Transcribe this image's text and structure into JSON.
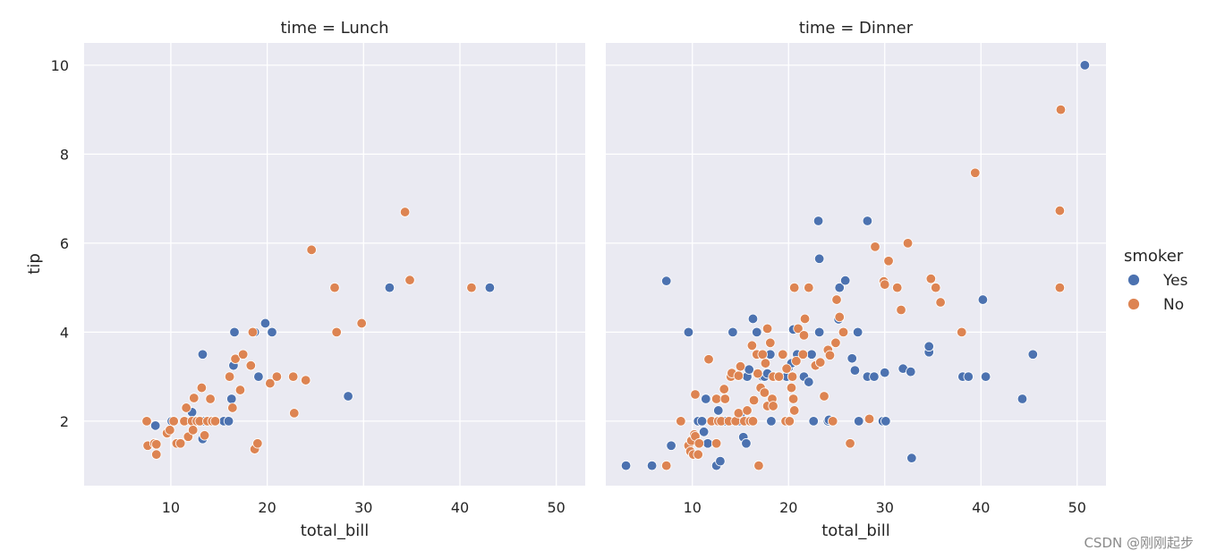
{
  "watermark": "CSDN @刚刚起步",
  "chart_data": {
    "type": "scatter",
    "x_label": "total_bill",
    "y_label": "tip",
    "xlim": [
      1,
      53
    ],
    "ylim": [
      0.55,
      10.5
    ],
    "x_ticks": [
      10,
      20,
      30,
      40,
      50
    ],
    "y_ticks": [
      2,
      4,
      6,
      8,
      10
    ],
    "grid": true,
    "legend": {
      "title": "smoker",
      "placement": "right",
      "entries": [
        {
          "label": "Yes",
          "color": "#4c72b0"
        },
        {
          "label": "No",
          "color": "#dd8452"
        }
      ]
    },
    "facets": [
      {
        "title": "time = Lunch",
        "series": [
          {
            "name": "Yes",
            "color": "#4c72b0",
            "points": [
              [
                8.4,
                1.9
              ],
              [
                10.1,
                2.0
              ],
              [
                12.2,
                2.2
              ],
              [
                12.7,
                2.0
              ],
              [
                13.3,
                3.5
              ],
              [
                13.3,
                1.6
              ],
              [
                13.4,
                2.0
              ],
              [
                13.8,
                2.0
              ],
              [
                15.5,
                2.0
              ],
              [
                16.0,
                2.0
              ],
              [
                16.3,
                2.5
              ],
              [
                16.5,
                3.25
              ],
              [
                16.6,
                4.0
              ],
              [
                18.7,
                4.0
              ],
              [
                19.1,
                3.0
              ],
              [
                19.8,
                4.2
              ],
              [
                20.5,
                4.0
              ],
              [
                28.4,
                2.56
              ],
              [
                32.7,
                5.0
              ],
              [
                43.1,
                5.0
              ]
            ]
          },
          {
            "name": "No",
            "color": "#dd8452",
            "points": [
              [
                7.5,
                2.0
              ],
              [
                7.6,
                1.45
              ],
              [
                8.3,
                1.5
              ],
              [
                8.5,
                1.25
              ],
              [
                8.5,
                1.48
              ],
              [
                9.6,
                1.73
              ],
              [
                9.9,
                1.8
              ],
              [
                10.3,
                2.0
              ],
              [
                10.6,
                1.5
              ],
              [
                11.0,
                1.5
              ],
              [
                11.4,
                2.0
              ],
              [
                11.6,
                2.3
              ],
              [
                11.8,
                1.65
              ],
              [
                12.2,
                2.0
              ],
              [
                12.3,
                1.8
              ],
              [
                12.4,
                2.52
              ],
              [
                12.7,
                2.0
              ],
              [
                13.0,
                2.0
              ],
              [
                13.2,
                2.75
              ],
              [
                13.5,
                1.68
              ],
              [
                13.8,
                2.0
              ],
              [
                14.1,
                2.5
              ],
              [
                14.3,
                2.0
              ],
              [
                14.6,
                2.0
              ],
              [
                16.1,
                3.0
              ],
              [
                16.4,
                2.3
              ],
              [
                16.7,
                3.4
              ],
              [
                17.2,
                2.7
              ],
              [
                17.5,
                3.5
              ],
              [
                18.3,
                3.25
              ],
              [
                18.5,
                4.0
              ],
              [
                18.7,
                1.37
              ],
              [
                19.0,
                1.5
              ],
              [
                20.3,
                2.85
              ],
              [
                21.0,
                3.0
              ],
              [
                22.7,
                3.0
              ],
              [
                22.8,
                2.18
              ],
              [
                24.0,
                2.92
              ],
              [
                24.6,
                5.85
              ],
              [
                27.0,
                5.0
              ],
              [
                27.2,
                4.0
              ],
              [
                29.8,
                4.2
              ],
              [
                34.3,
                6.7
              ],
              [
                34.8,
                5.17
              ],
              [
                41.2,
                5.0
              ]
            ]
          }
        ]
      },
      {
        "title": "time = Dinner",
        "series": [
          {
            "name": "Yes",
            "color": "#4c72b0",
            "points": [
              [
                3.1,
                1.0
              ],
              [
                5.8,
                1.0
              ],
              [
                7.3,
                5.15
              ],
              [
                7.8,
                1.45
              ],
              [
                9.6,
                4.0
              ],
              [
                10.6,
                2.0
              ],
              [
                11.0,
                2.0
              ],
              [
                11.2,
                1.76
              ],
              [
                11.4,
                2.5
              ],
              [
                11.6,
                1.5
              ],
              [
                12.5,
                1.0
              ],
              [
                12.7,
                2.24
              ],
              [
                12.9,
                1.1
              ],
              [
                13.3,
                2.5
              ],
              [
                13.4,
                2.0
              ],
              [
                14.2,
                4.0
              ],
              [
                14.5,
                2.0
              ],
              [
                14.8,
                2.0
              ],
              [
                15.0,
                2.1
              ],
              [
                15.3,
                1.64
              ],
              [
                15.6,
                1.5
              ],
              [
                15.7,
                3.0
              ],
              [
                15.9,
                3.16
              ],
              [
                16.3,
                4.3
              ],
              [
                16.7,
                4.0
              ],
              [
                16.9,
                3.5
              ],
              [
                17.3,
                3.0
              ],
              [
                17.5,
                3.0
              ],
              [
                17.8,
                3.07
              ],
              [
                18.1,
                3.5
              ],
              [
                18.2,
                2.0
              ],
              [
                18.8,
                3.0
              ],
              [
                19.8,
                3.0
              ],
              [
                20.0,
                3.2
              ],
              [
                20.3,
                3.3
              ],
              [
                20.5,
                4.06
              ],
              [
                20.9,
                3.5
              ],
              [
                21.6,
                3.0
              ],
              [
                22.1,
                2.88
              ],
              [
                22.4,
                3.5
              ],
              [
                22.6,
                2.0
              ],
              [
                23.1,
                6.5
              ],
              [
                23.2,
                5.65
              ],
              [
                23.2,
                4.0
              ],
              [
                24.1,
                2.0
              ],
              [
                24.2,
                2.03
              ],
              [
                25.2,
                4.29
              ],
              [
                25.3,
                5.0
              ],
              [
                25.9,
                5.16
              ],
              [
                26.6,
                3.41
              ],
              [
                26.9,
                3.14
              ],
              [
                27.2,
                4.0
              ],
              [
                27.3,
                2.0
              ],
              [
                28.2,
                6.5
              ],
              [
                28.2,
                3.0
              ],
              [
                28.9,
                3.0
              ],
              [
                29.8,
                2.0
              ],
              [
                30.0,
                3.09
              ],
              [
                30.1,
                2.0
              ],
              [
                31.9,
                3.18
              ],
              [
                32.7,
                3.11
              ],
              [
                32.8,
                1.17
              ],
              [
                34.6,
                3.55
              ],
              [
                34.6,
                3.68
              ],
              [
                38.1,
                3.0
              ],
              [
                38.7,
                3.0
              ],
              [
                40.2,
                4.73
              ],
              [
                40.5,
                3.0
              ],
              [
                44.3,
                2.5
              ],
              [
                45.4,
                3.5
              ],
              [
                50.8,
                10.0
              ]
            ]
          },
          {
            "name": "No",
            "color": "#dd8452",
            "points": [
              [
                7.3,
                1.0
              ],
              [
                8.8,
                2.0
              ],
              [
                9.6,
                1.45
              ],
              [
                9.8,
                1.32
              ],
              [
                9.9,
                1.56
              ],
              [
                10.1,
                1.25
              ],
              [
                10.2,
                1.7
              ],
              [
                10.3,
                1.66
              ],
              [
                10.3,
                2.6
              ],
              [
                10.6,
                1.25
              ],
              [
                10.7,
                1.5
              ],
              [
                11.7,
                3.39
              ],
              [
                12.0,
                2.0
              ],
              [
                12.5,
                1.5
              ],
              [
                12.5,
                2.5
              ],
              [
                12.7,
                2.0
              ],
              [
                13.0,
                2.0
              ],
              [
                13.3,
                2.72
              ],
              [
                13.4,
                2.5
              ],
              [
                13.8,
                2.0
              ],
              [
                14.0,
                3.0
              ],
              [
                14.1,
                3.08
              ],
              [
                14.5,
                2.0
              ],
              [
                14.8,
                3.02
              ],
              [
                14.8,
                2.18
              ],
              [
                15.0,
                3.23
              ],
              [
                15.4,
                2.0
              ],
              [
                15.7,
                2.24
              ],
              [
                16.0,
                2.0
              ],
              [
                16.2,
                3.7
              ],
              [
                16.3,
                2.0
              ],
              [
                16.4,
                2.47
              ],
              [
                16.7,
                3.5
              ],
              [
                16.8,
                3.07
              ],
              [
                16.9,
                1.0
              ],
              [
                17.1,
                2.75
              ],
              [
                17.3,
                3.5
              ],
              [
                17.5,
                2.64
              ],
              [
                17.6,
                3.3
              ],
              [
                17.8,
                4.08
              ],
              [
                17.8,
                2.34
              ],
              [
                18.1,
                3.76
              ],
              [
                18.3,
                2.5
              ],
              [
                18.4,
                3.0
              ],
              [
                18.4,
                2.34
              ],
              [
                19.0,
                3.0
              ],
              [
                19.4,
                3.5
              ],
              [
                19.7,
                2.0
              ],
              [
                19.8,
                3.18
              ],
              [
                20.1,
                2.0
              ],
              [
                20.3,
                2.75
              ],
              [
                20.4,
                3.0
              ],
              [
                20.5,
                2.5
              ],
              [
                20.6,
                2.24
              ],
              [
                20.6,
                5.0
              ],
              [
                20.8,
                3.35
              ],
              [
                21.0,
                4.08
              ],
              [
                21.5,
                3.5
              ],
              [
                21.6,
                3.93
              ],
              [
                21.7,
                4.3
              ],
              [
                22.1,
                5.0
              ],
              [
                22.8,
                3.25
              ],
              [
                23.3,
                3.32
              ],
              [
                23.7,
                2.56
              ],
              [
                24.1,
                3.6
              ],
              [
                24.3,
                3.48
              ],
              [
                24.6,
                2.0
              ],
              [
                24.9,
                3.76
              ],
              [
                25.0,
                4.73
              ],
              [
                25.3,
                4.34
              ],
              [
                25.7,
                4.0
              ],
              [
                26.4,
                1.5
              ],
              [
                28.4,
                2.05
              ],
              [
                29.0,
                5.92
              ],
              [
                29.9,
                5.14
              ],
              [
                30.0,
                5.07
              ],
              [
                30.4,
                5.6
              ],
              [
                31.3,
                5.0
              ],
              [
                31.7,
                4.5
              ],
              [
                32.4,
                6.0
              ],
              [
                34.8,
                5.2
              ],
              [
                35.3,
                5.0
              ],
              [
                35.8,
                4.67
              ],
              [
                38.0,
                4.0
              ],
              [
                39.4,
                7.58
              ],
              [
                48.2,
                5.0
              ],
              [
                48.2,
                6.73
              ],
              [
                48.3,
                9.0
              ]
            ]
          }
        ]
      }
    ]
  }
}
